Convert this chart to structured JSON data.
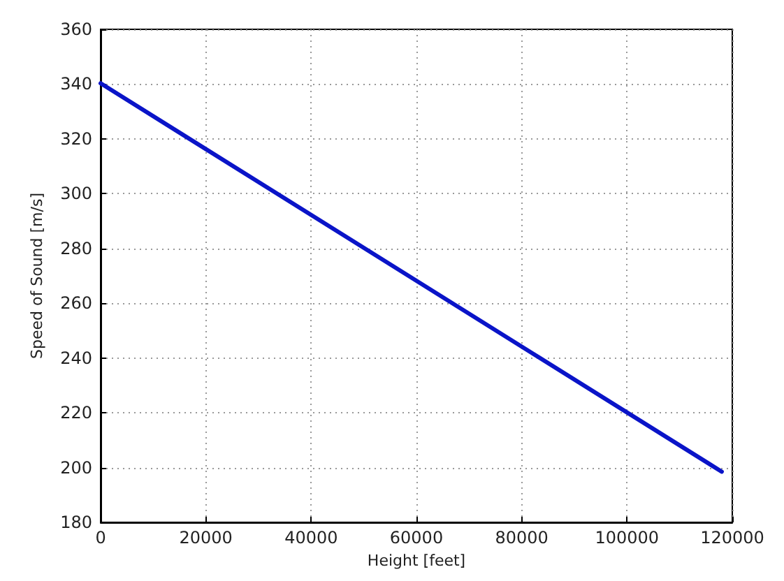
{
  "chart_data": {
    "type": "line",
    "xlabel": "Height [feet]",
    "ylabel": "Speed of Sound [m/s]",
    "x": [
      0,
      118000
    ],
    "series": [
      {
        "color": "#0a14c8",
        "values": [
          340.3,
          198.5
        ]
      }
    ],
    "xlim": [
      0,
      120000
    ],
    "xticks": [
      0,
      20000,
      40000,
      60000,
      80000,
      100000,
      120000
    ],
    "ylim": [
      180,
      360
    ],
    "yticks": [
      180,
      200,
      220,
      240,
      260,
      280,
      300,
      320,
      340,
      360
    ],
    "grid": true,
    "line_style": "solid",
    "marker": "none"
  }
}
